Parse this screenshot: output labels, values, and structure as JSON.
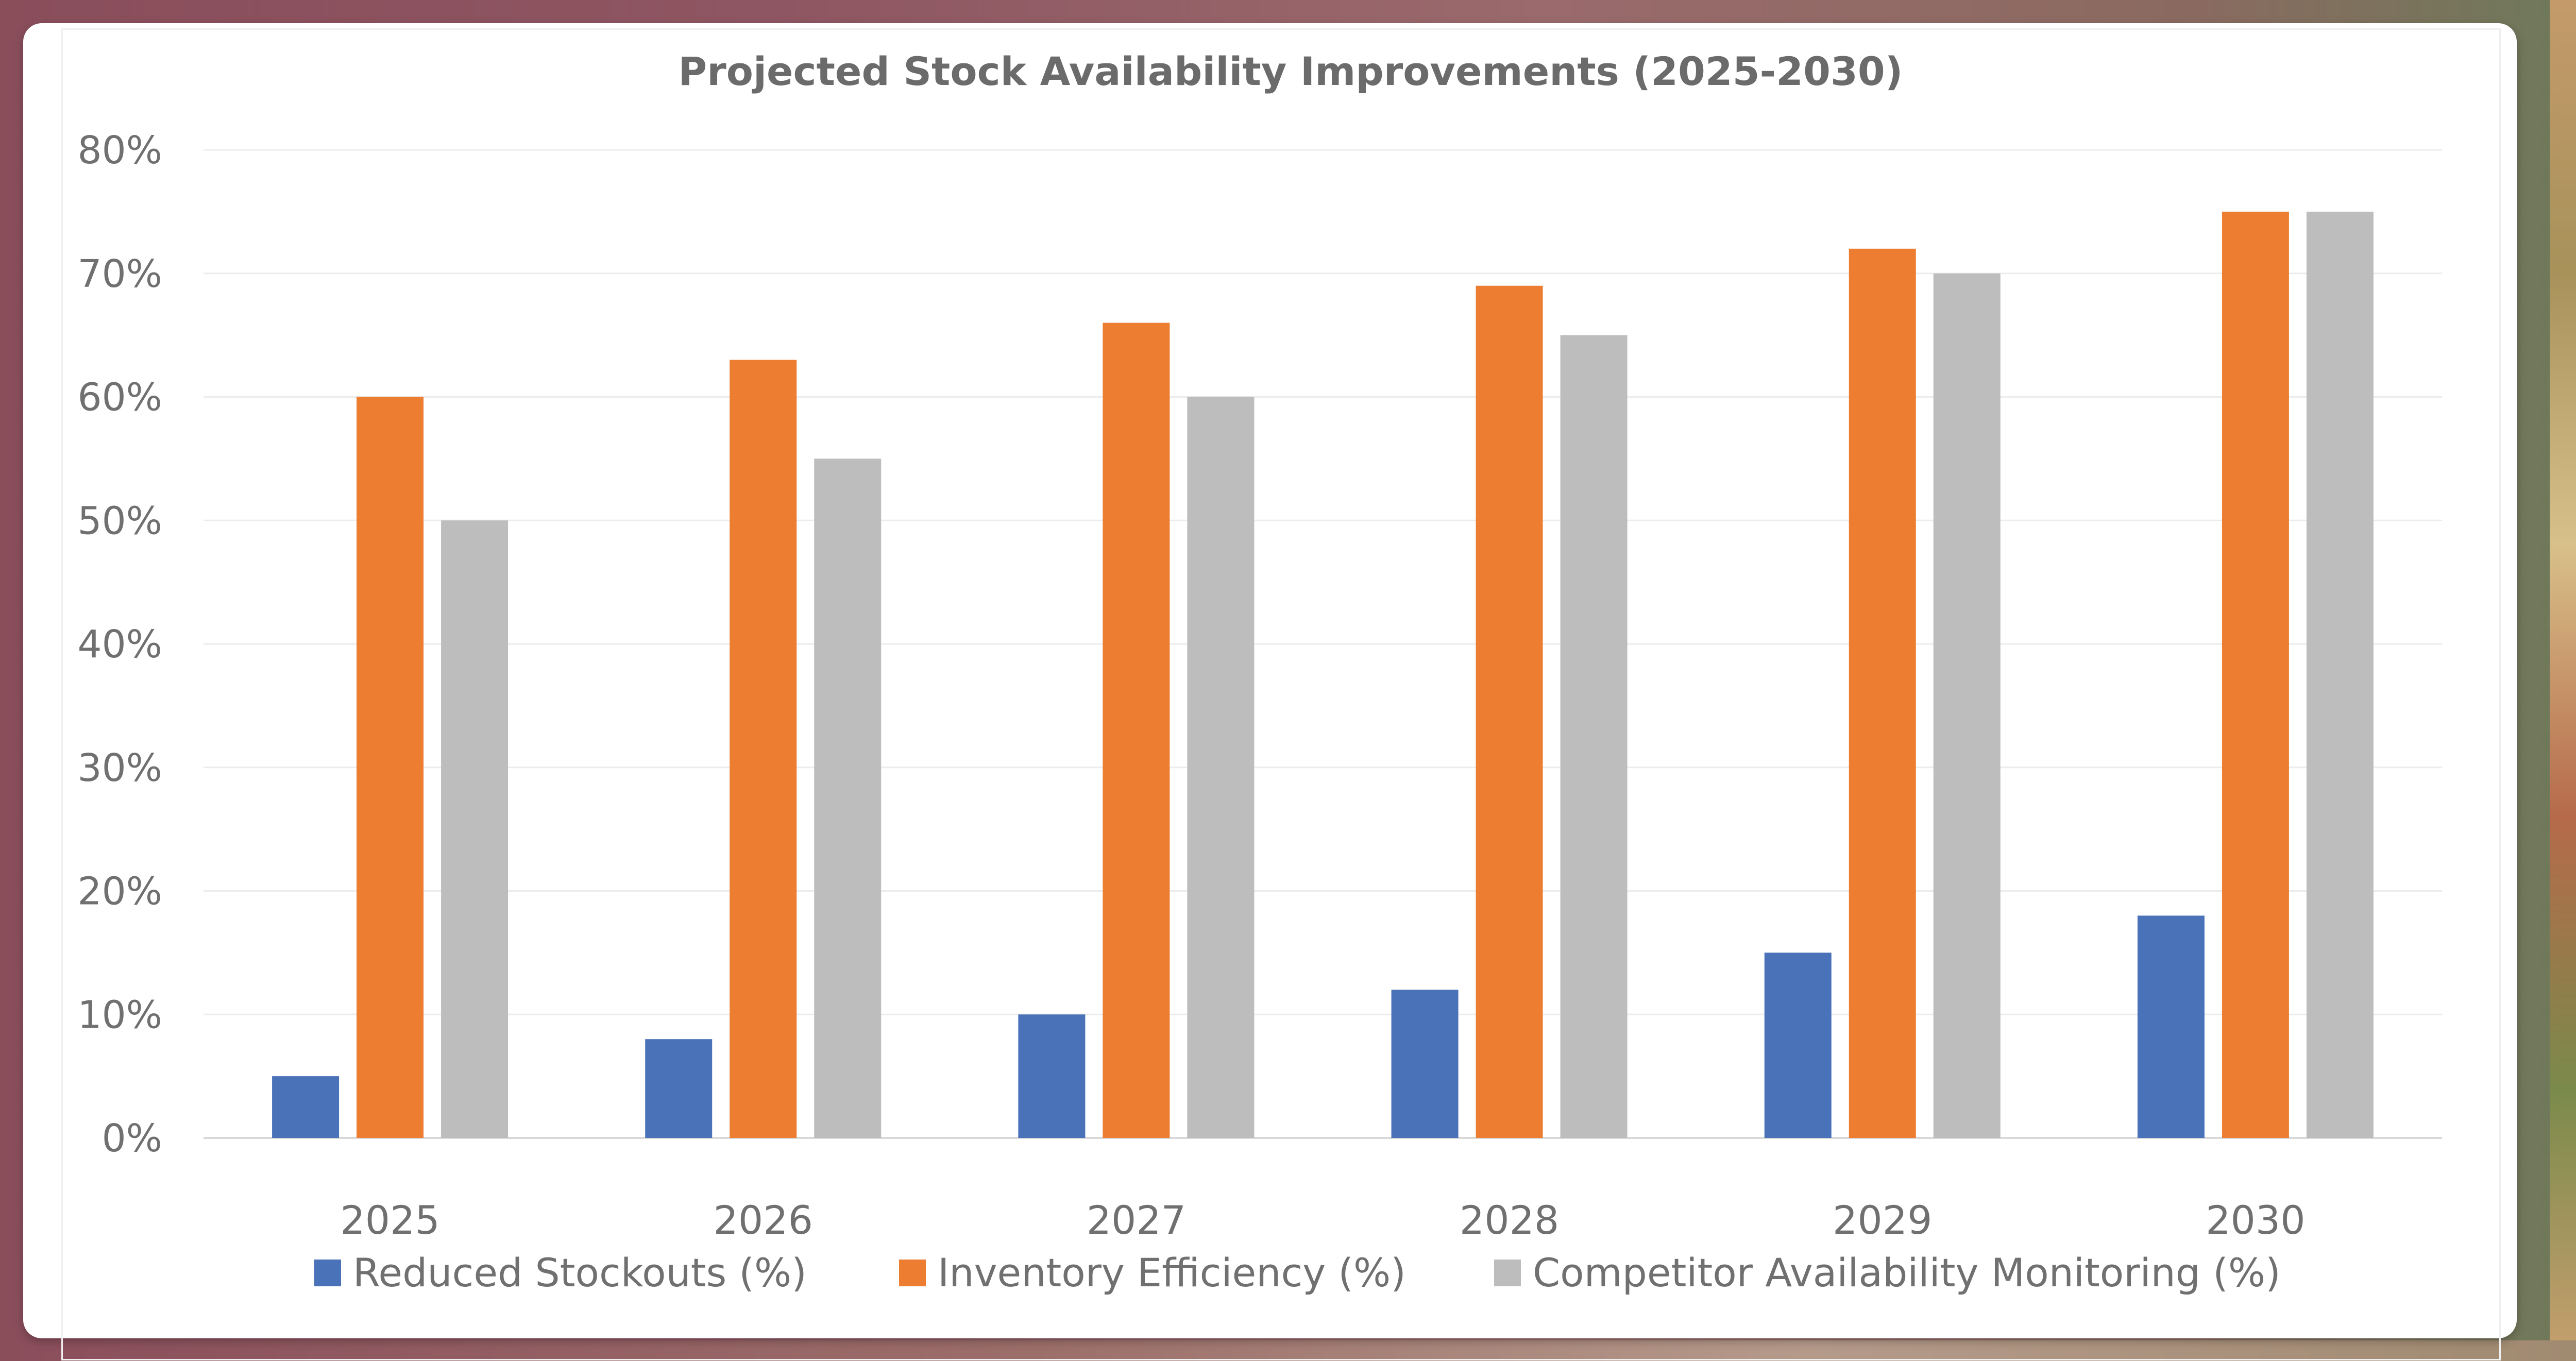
{
  "chart_data": {
    "type": "bar",
    "title": "Projected Stock Availability Improvements (2025-2030)",
    "xlabel": "",
    "ylabel": "",
    "categories": [
      "2025",
      "2026",
      "2027",
      "2028",
      "2029",
      "2030"
    ],
    "ylim": [
      0,
      80
    ],
    "yticks": [
      0,
      10,
      20,
      30,
      40,
      50,
      60,
      70,
      80
    ],
    "ytick_labels": [
      "0%",
      "10%",
      "20%",
      "30%",
      "40%",
      "50%",
      "60%",
      "70%",
      "80%"
    ],
    "grid": true,
    "legend_position": "bottom",
    "series": [
      {
        "name": "Reduced Stockouts (%)",
        "values": [
          5,
          8,
          10,
          12,
          15,
          18
        ],
        "color": "#4a72b8"
      },
      {
        "name": "Inventory Efficiency (%)",
        "values": [
          60,
          63,
          66,
          69,
          72,
          75
        ],
        "color": "#ed7d31"
      },
      {
        "name": "Competitor Availability Monitoring (%)",
        "values": [
          50,
          55,
          60,
          65,
          70,
          75
        ],
        "color": "#bdbdbd"
      }
    ]
  }
}
